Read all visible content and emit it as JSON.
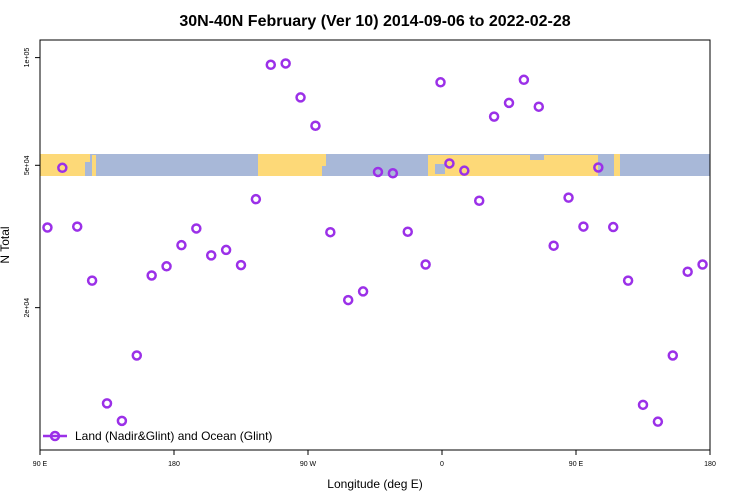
{
  "chart_data": {
    "type": "scatter",
    "title": "30N-40N February (Ver 10)   2014-09-06 to 2022-02-28",
    "xlabel": "Longitude (deg E)",
    "ylabel": "N Total",
    "x_ticks": [
      {
        "value": 90,
        "label": "90 E"
      },
      {
        "value": 180,
        "label": "180"
      },
      {
        "value": 270,
        "label": "90 W"
      },
      {
        "value": 360,
        "label": "0"
      },
      {
        "value": 450,
        "label": "90 E"
      },
      {
        "value": 540,
        "label": "180"
      }
    ],
    "y_ticks": [
      {
        "value": 20000,
        "label": "2e+04"
      },
      {
        "value": 50000,
        "label": "5e+04"
      },
      {
        "value": 100000,
        "label": "1e+05"
      }
    ],
    "xlim": [
      90,
      540
    ],
    "ylim": [
      8000,
      112000
    ],
    "y_scale": "log",
    "grid": false,
    "legend_position": "bottom-left",
    "series": [
      {
        "name": "Land (Nadir&Glint) and Ocean (Glint)",
        "color": "#9b30e8",
        "marker": "open-circle",
        "x": [
          95,
          105,
          115,
          125,
          135,
          145,
          155,
          165,
          175,
          185,
          195,
          205,
          215,
          225,
          235,
          245,
          255,
          265,
          275,
          285,
          297,
          307,
          317,
          327,
          337,
          349,
          359,
          365,
          375,
          385,
          395,
          405,
          415,
          425,
          435,
          445,
          455,
          465,
          475,
          485,
          495,
          505,
          515,
          525,
          535
        ],
        "y": [
          33500,
          49200,
          33700,
          23800,
          10800,
          9650,
          14700,
          24600,
          26100,
          29900,
          33300,
          28000,
          29000,
          26300,
          40200,
          95500,
          96300,
          77400,
          64500,
          32500,
          21000,
          22200,
          47900,
          47500,
          32600,
          26400,
          85300,
          50600,
          48300,
          39800,
          68400,
          74700,
          86700,
          72900,
          29800,
          40600,
          33700,
          49300,
          33600,
          23800,
          10700,
          9600,
          14700,
          25200,
          26400
        ]
      }
    ],
    "background": {
      "type": "world-map-strip",
      "land_color": "#fdd978",
      "ocean_color": "#a8b8d8"
    }
  }
}
